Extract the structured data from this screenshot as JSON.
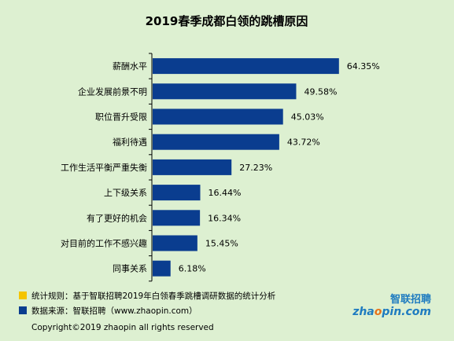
{
  "chart_data": {
    "type": "bar",
    "orientation": "horizontal",
    "title": "2019春季成都白领的跳槽原因",
    "categories": [
      "薪酬水平",
      "企业发展前景不明",
      "职位晋升受限",
      "福利待遇",
      "工作生活平衡严重失衡",
      "上下级关系",
      "有了更好的机会",
      "对目前的工作不感兴趣",
      "同事关系"
    ],
    "values": [
      64.35,
      49.58,
      45.03,
      43.72,
      27.23,
      16.44,
      16.34,
      15.45,
      6.18
    ],
    "value_labels": [
      "64.35%",
      "49.58%",
      "45.03%",
      "43.72%",
      "27.23%",
      "16.44%",
      "16.34%",
      "15.45%",
      "6.18%"
    ],
    "unit": "%",
    "xlim": [
      0,
      100
    ],
    "grid": false,
    "bar_color": "#0a3d8f",
    "axis_color": "#000000"
  },
  "footnotes": {
    "rule": "统计规则：基于智联招聘2019年白领春季跳槽调研数据的统计分析",
    "source": "数据来源：智联招聘（www.zhaopin.com）",
    "rule_marker_color": "#f4c400",
    "source_marker_color": "#0a3d8f"
  },
  "logo": {
    "cn_text": "智联招聘",
    "en_text": "zhaopin.com"
  },
  "copyright": "Copyright©2019 zhaopin all rights reserved"
}
